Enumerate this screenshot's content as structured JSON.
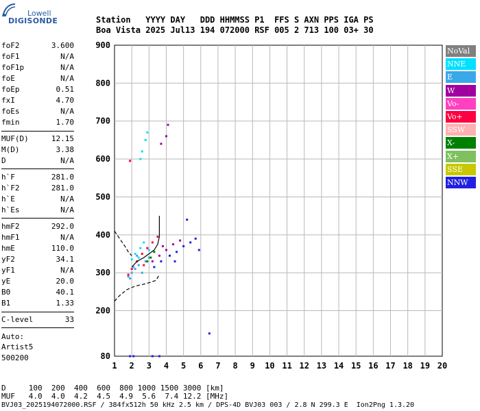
{
  "logo": {
    "top": "Lowell",
    "bottom": "DIGISONDE"
  },
  "header": {
    "line1": "Station   YYYY DAY   DDD HHMMSS P1  FFS S AXN PPS IGA PS",
    "line2": "Boa Vista 2025 Jul13 194 072000 RSF 005 2 713 100 03+ 30"
  },
  "params": [
    {
      "label": "foF2",
      "value": "3.600"
    },
    {
      "label": "foF1",
      "value": "N/A"
    },
    {
      "label": "foF1p",
      "value": "N/A"
    },
    {
      "label": "foE",
      "value": "N/A"
    },
    {
      "label": "foEp",
      "value": "0.51"
    },
    {
      "label": "fxI",
      "value": "4.70"
    },
    {
      "label": "foEs",
      "value": "N/A"
    },
    {
      "label": "fmin",
      "value": "1.70"
    },
    {
      "label": "MUF(D)",
      "value": "12.15"
    },
    {
      "label": "M(D)",
      "value": "3.38"
    },
    {
      "label": "D",
      "value": "N/A"
    },
    {
      "label": "h`F",
      "value": "281.0"
    },
    {
      "label": "h`F2",
      "value": "281.0"
    },
    {
      "label": "h`E",
      "value": "N/A"
    },
    {
      "label": "h`Es",
      "value": "N/A"
    },
    {
      "label": "hmF2",
      "value": "292.0"
    },
    {
      "label": "hmF1",
      "value": "N/A"
    },
    {
      "label": "hmE",
      "value": "110.0"
    },
    {
      "label": "yF2",
      "value": "34.1"
    },
    {
      "label": "yF1",
      "value": "N/A"
    },
    {
      "label": "yE",
      "value": "20.0"
    },
    {
      "label": "B0",
      "value": "40.1"
    },
    {
      "label": "B1",
      "value": "1.33"
    }
  ],
  "clevel": {
    "label": "C-level",
    "value": "33"
  },
  "auto": {
    "line1": "Auto:",
    "line2": "Artist5",
    "line3": "500200"
  },
  "legend": [
    {
      "label": "NoVal",
      "color": "#808080"
    },
    {
      "label": "NNE",
      "color": "#00e0ff"
    },
    {
      "label": "E",
      "color": "#3aa8e8"
    },
    {
      "label": "W",
      "color": "#a000a0"
    },
    {
      "label": "Vo-",
      "color": "#ff40c0"
    },
    {
      "label": "Vo+",
      "color": "#ff0040"
    },
    {
      "label": "SSW",
      "color": "#ffb0b0"
    },
    {
      "label": "X-",
      "color": "#008000"
    },
    {
      "label": "X+",
      "color": "#80c060"
    },
    {
      "label": "SSE",
      "color": "#c8c800"
    },
    {
      "label": "NNW",
      "color": "#2020e0"
    }
  ],
  "bottom": {
    "line1": "D     100  200  400  600  800 1000 1500 3000 [km]",
    "line2": "MUF   4.0  4.0  4.2  4.5  4.9  5.6  7.4 12.2 [MHz]",
    "footer": "BVJ03_2025194072000.RSF / 384fx512h 50 kHz 2.5 km / DPS-4D BVJ03 003 / 2.8 N 299.3 E  Ion2Png 1.3.20"
  },
  "chart_data": {
    "type": "scatter",
    "xlim": [
      1,
      20
    ],
    "ylim": [
      80,
      900
    ],
    "xticks": [
      1,
      2,
      3,
      4,
      5,
      6,
      7,
      8,
      9,
      10,
      11,
      12,
      13,
      14,
      15,
      16,
      17,
      18,
      19,
      20
    ],
    "yticks": [
      80,
      200,
      300,
      400,
      500,
      600,
      700,
      800,
      900
    ],
    "grid": true,
    "legend_position": "right",
    "series": [
      {
        "name": "E",
        "points": [
          [
            1.8,
            290
          ],
          [
            2.0,
            300
          ],
          [
            2.2,
            310
          ],
          [
            2.4,
            320
          ],
          [
            2.6,
            300
          ],
          [
            2.8,
            330
          ],
          [
            3.0,
            340
          ],
          [
            2.3,
            345
          ],
          [
            2.1,
            315
          ],
          [
            1.9,
            285
          ]
        ]
      },
      {
        "name": "NNE",
        "points": [
          [
            2.0,
            335
          ],
          [
            2.2,
            350
          ],
          [
            2.5,
            365
          ],
          [
            2.7,
            380
          ],
          [
            2.4,
            340
          ],
          [
            3.0,
            360
          ],
          [
            2.5,
            600
          ],
          [
            2.6,
            620
          ],
          [
            2.8,
            650
          ],
          [
            2.9,
            670
          ]
        ]
      },
      {
        "name": "Vo+",
        "points": [
          [
            1.8,
            295
          ],
          [
            2.0,
            310
          ],
          [
            2.3,
            330
          ],
          [
            2.6,
            350
          ],
          [
            2.9,
            365
          ],
          [
            3.2,
            380
          ],
          [
            3.5,
            395
          ],
          [
            2.7,
            320
          ],
          [
            1.9,
            595
          ]
        ]
      },
      {
        "name": "W",
        "points": [
          [
            3.2,
            330
          ],
          [
            3.6,
            345
          ],
          [
            4.0,
            360
          ],
          [
            4.4,
            375
          ],
          [
            4.8,
            385
          ],
          [
            3.8,
            370
          ],
          [
            3.7,
            640
          ],
          [
            4.0,
            660
          ],
          [
            4.1,
            690
          ]
        ]
      },
      {
        "name": "NNW",
        "points": [
          [
            3.3,
            315
          ],
          [
            3.7,
            330
          ],
          [
            4.2,
            345
          ],
          [
            4.6,
            355
          ],
          [
            5.0,
            370
          ],
          [
            5.4,
            380
          ],
          [
            5.7,
            390
          ],
          [
            5.9,
            360
          ],
          [
            5.2,
            440
          ],
          [
            4.5,
            330
          ]
        ]
      },
      {
        "name": "X-",
        "points": [
          [
            2.9,
            330
          ],
          [
            3.1,
            340
          ],
          [
            3.3,
            355
          ]
        ]
      },
      {
        "name": "NNW",
        "points": [
          [
            1.9,
            80
          ],
          [
            2.1,
            80
          ],
          [
            3.2,
            80
          ],
          [
            3.6,
            80
          ],
          [
            6.5,
            140
          ]
        ]
      }
    ],
    "traces": {
      "profile_x": [
        2.0,
        2.3,
        2.7,
        3.0,
        3.3,
        3.5,
        3.6,
        3.6
      ],
      "profile_y": [
        315,
        330,
        340,
        350,
        360,
        375,
        395,
        450
      ],
      "lower_x": [
        1.0,
        1.3,
        1.7,
        2.2,
        2.7,
        3.1,
        3.4,
        3.6
      ],
      "lower_y": [
        225,
        240,
        255,
        265,
        270,
        275,
        280,
        295
      ],
      "upper_x": [
        1.0,
        1.3,
        1.6,
        1.8,
        2.0
      ],
      "upper_y": [
        410,
        390,
        370,
        355,
        345
      ]
    }
  }
}
